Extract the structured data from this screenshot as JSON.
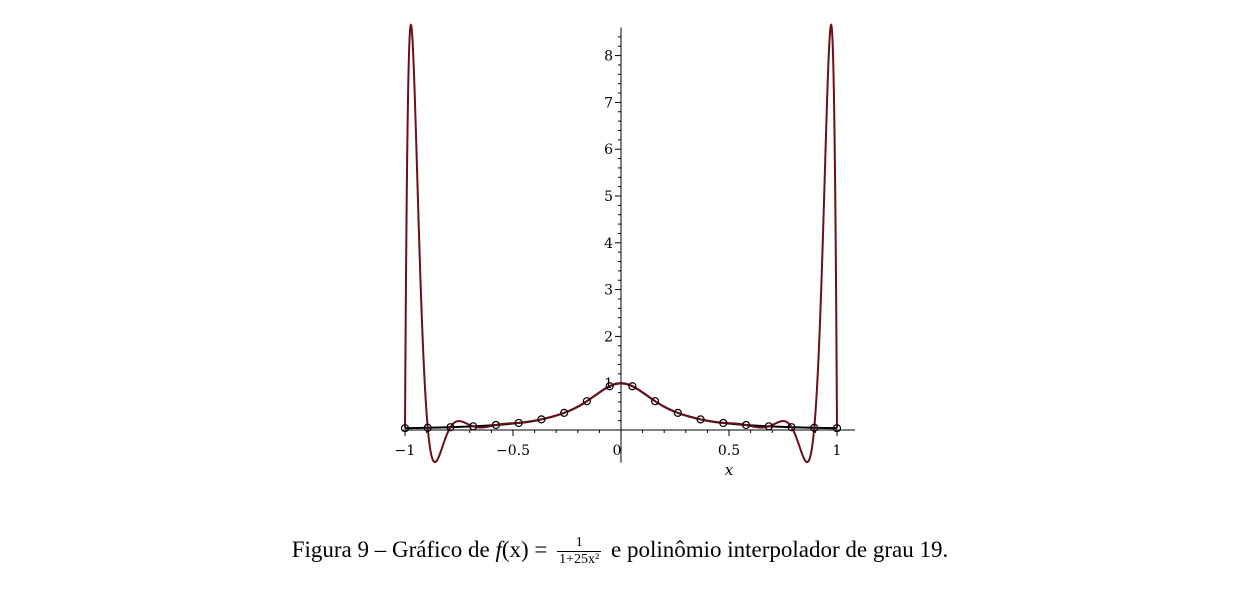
{
  "chart_data": {
    "type": "line",
    "title": "",
    "xlabel": "x",
    "ylabel": "",
    "xlim": [
      -1,
      1
    ],
    "ylim": [
      -0.7,
      8.6
    ],
    "x_ticks": [
      -1,
      -0.5,
      0,
      0.5,
      1
    ],
    "x_tick_labels": [
      "−1",
      "−0.5",
      "0",
      "0.5",
      "1"
    ],
    "y_ticks": [
      1,
      2,
      3,
      4,
      5,
      6,
      7,
      8
    ],
    "y_tick_labels": [
      "1",
      "2",
      "3",
      "4",
      "5",
      "6",
      "7",
      "8"
    ],
    "grid": false,
    "legend": "none",
    "series": [
      {
        "function": "1/(1+25*x^2)",
        "color": "#000000"
      },
      {
        "function": "interpolating polynomial of degree 19 on 20 equispaced nodes in [-1,1]",
        "color": "#6b0f1a"
      }
    ],
    "nodes": {
      "x": [
        -1,
        -0.8947,
        -0.7895,
        -0.6842,
        -0.5789,
        -0.4737,
        -0.3684,
        -0.2632,
        -0.1579,
        -0.0526,
        0.0526,
        0.1579,
        0.2632,
        0.3684,
        0.4737,
        0.5789,
        0.6842,
        0.7895,
        0.8947,
        1
      ],
      "y": [
        0.0385,
        0.0475,
        0.0603,
        0.0787,
        0.1066,
        0.1513,
        0.2276,
        0.3661,
        0.616,
        0.9353,
        0.9353,
        0.616,
        0.3661,
        0.2276,
        0.1513,
        0.1066,
        0.0787,
        0.0603,
        0.0475,
        0.0385
      ]
    }
  },
  "caption": {
    "prefix": "Figura 9 – Gráfico de ",
    "func_name": "f",
    "func_arg": "(x) = ",
    "frac_num": "1",
    "frac_den": "1+25x²",
    "suffix": " e polinômio interpolador de grau 19."
  }
}
